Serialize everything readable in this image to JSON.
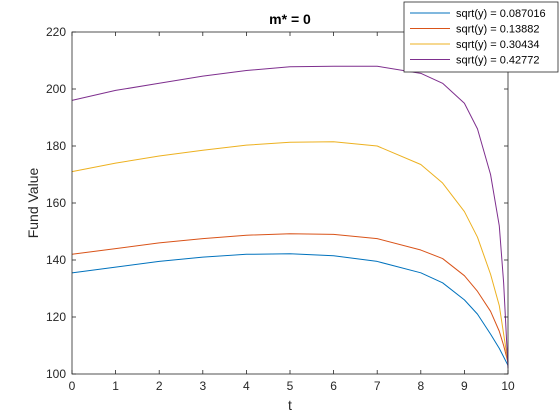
{
  "chart_data": {
    "type": "line",
    "title": "m* = 0",
    "xlabel": "t",
    "ylabel": "Fund Value",
    "xlim": [
      0,
      10
    ],
    "ylim": [
      100,
      220
    ],
    "xticks": [
      0,
      1,
      2,
      3,
      4,
      5,
      6,
      7,
      8,
      9,
      10
    ],
    "yticks": [
      100,
      120,
      140,
      160,
      180,
      200,
      220
    ],
    "grid": false,
    "legend_position": "top-right",
    "x": [
      0,
      1,
      2,
      3,
      4,
      5,
      6,
      7,
      8,
      8.5,
      9,
      9.3,
      9.6,
      9.8,
      9.9,
      10
    ],
    "series": [
      {
        "name": "sqrt(y) = 0.087016",
        "color": "#0072BD",
        "values": [
          135.5,
          137.5,
          139.5,
          141,
          142,
          142.2,
          141.5,
          139.5,
          135.5,
          132,
          126,
          121,
          114,
          109,
          106,
          103
        ]
      },
      {
        "name": "sqrt(y) = 0.13882",
        "color": "#D95319",
        "values": [
          142,
          144,
          146,
          147.5,
          148.7,
          149.2,
          149,
          147.5,
          143.5,
          140.5,
          134.5,
          129,
          122,
          115,
          110,
          104
        ]
      },
      {
        "name": "sqrt(y) = 0.30434",
        "color": "#EDB120",
        "values": [
          171,
          174,
          176.5,
          178.5,
          180.3,
          181.3,
          181.5,
          180,
          173.5,
          167,
          157,
          148,
          135,
          124,
          114,
          104
        ]
      },
      {
        "name": "sqrt(y) = 0.42772",
        "color": "#7E2F8E",
        "values": [
          196,
          199.5,
          202,
          204.5,
          206.5,
          207.8,
          208,
          208,
          205.5,
          202,
          195,
          186,
          170,
          152,
          132,
          102
        ]
      }
    ]
  }
}
